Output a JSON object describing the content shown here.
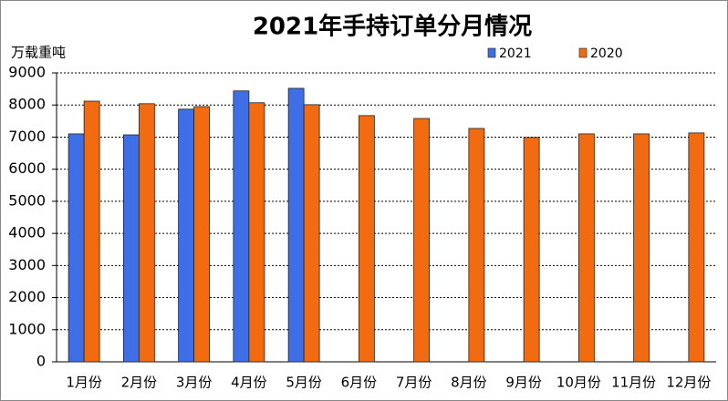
{
  "chart_data": {
    "type": "bar",
    "title": "2021年手持订单分月情况",
    "y_label": "万载重吨",
    "categories": [
      "1月份",
      "2月份",
      "3月份",
      "4月份",
      "5月份",
      "6月份",
      "7月份",
      "8月份",
      "9月份",
      "10月份",
      "11月份",
      "12月份"
    ],
    "series": [
      {
        "name": "2021",
        "color": "#3f6fe6",
        "values": [
          7100,
          7070,
          7870,
          8440,
          8520,
          null,
          null,
          null,
          null,
          null,
          null,
          null
        ]
      },
      {
        "name": "2020",
        "color": "#f26b10",
        "values": [
          8120,
          8040,
          7950,
          8070,
          8010,
          7670,
          7580,
          7270,
          6990,
          7100,
          7100,
          7130
        ]
      }
    ],
    "ylim": [
      0,
      9000
    ],
    "yticks": [
      0,
      1000,
      2000,
      3000,
      4000,
      5000,
      6000,
      7000,
      8000,
      9000
    ],
    "grid": true,
    "legend": "top-right"
  }
}
